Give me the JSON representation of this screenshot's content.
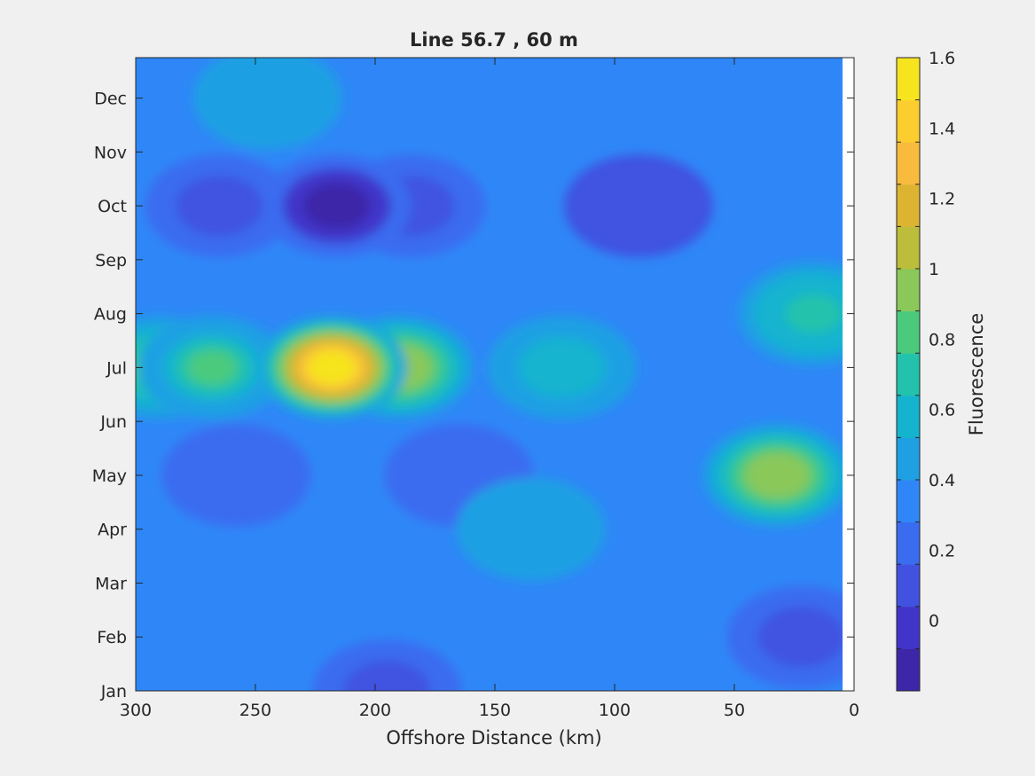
{
  "chart_data": {
    "type": "heatmap",
    "title": "Line 56.7 , 60 m",
    "xlabel": "Offshore Distance (km)",
    "ylabel": "",
    "xlim": [
      300,
      0
    ],
    "x_reversed": true,
    "x_ticks": [
      300,
      250,
      200,
      150,
      100,
      50,
      0
    ],
    "x_tick_labels": [
      "300",
      "250",
      "200",
      "150",
      "100",
      "50",
      "0"
    ],
    "y_ticks": [
      "Jan",
      "Feb",
      "Mar",
      "Apr",
      "May",
      "Jun",
      "Jul",
      "Aug",
      "Sep",
      "Oct",
      "Nov",
      "Dec"
    ],
    "data_x_range": [
      300,
      6
    ],
    "colorbar": {
      "label": "Fluorescence",
      "range": [
        -0.2,
        1.6
      ],
      "tick_values": [
        0,
        0.2,
        0.4,
        0.6,
        0.8,
        1,
        1.2,
        1.4,
        1.6
      ],
      "tick_labels": [
        "0",
        "0.2",
        "0.4",
        "0.6",
        "0.8",
        "1",
        "1.2",
        "1.4",
        "1.6"
      ],
      "level_colors": [
        "#3e26a8",
        "#4135c9",
        "#4152e1",
        "#3a6cf0",
        "#2f87f7",
        "#1ea0e3",
        "#14b4cf",
        "#23c2ac",
        "#4bca7e",
        "#8ac85a",
        "#bcbd3a",
        "#dcb432",
        "#f8bb3d",
        "#fccd2f",
        "#f6e41f"
      ]
    },
    "features": [
      {
        "name": "bloom center",
        "x": 218,
        "y": "Jul",
        "value": 1.6
      },
      {
        "name": "bloom east lobe",
        "x": 190,
        "y": "Jul",
        "value": 1.0
      },
      {
        "name": "bloom west",
        "x": 268,
        "y": "Jul",
        "value": 0.85
      },
      {
        "name": "bloom far west",
        "x": 290,
        "y": "Jul",
        "value": 0.8
      },
      {
        "name": "coastal max",
        "x": 32,
        "y": "May",
        "value": 1.0
      },
      {
        "name": "min center",
        "x": 216,
        "y": "Oct",
        "value": -0.1
      },
      {
        "name": "low band west",
        "x": 265,
        "y": "Oct",
        "value": 0.05
      },
      {
        "name": "low band mid",
        "x": 185,
        "y": "Oct",
        "value": 0.05
      },
      {
        "name": "low offshore north",
        "x": 90,
        "y": "Oct",
        "value": 0.15
      },
      {
        "name": "low coastal feb",
        "x": 22,
        "y": "Feb",
        "value": 0.1
      },
      {
        "name": "low jan",
        "x": 195,
        "y": "Jan",
        "value": 0.1
      },
      {
        "name": "high dec",
        "x": 245,
        "y": "Dec",
        "value": 0.5
      },
      {
        "name": "high aug offshore",
        "x": 122,
        "y": "Jul",
        "value": 0.55
      },
      {
        "name": "high apr",
        "x": 135,
        "y": "Apr",
        "value": 0.5
      },
      {
        "name": "high sep coastal",
        "x": 17,
        "y": "Aug",
        "value": 0.75
      },
      {
        "name": "low may west",
        "x": 258,
        "y": "May",
        "value": 0.2
      },
      {
        "name": "low may mid",
        "x": 165,
        "y": "May",
        "value": 0.25
      }
    ]
  }
}
